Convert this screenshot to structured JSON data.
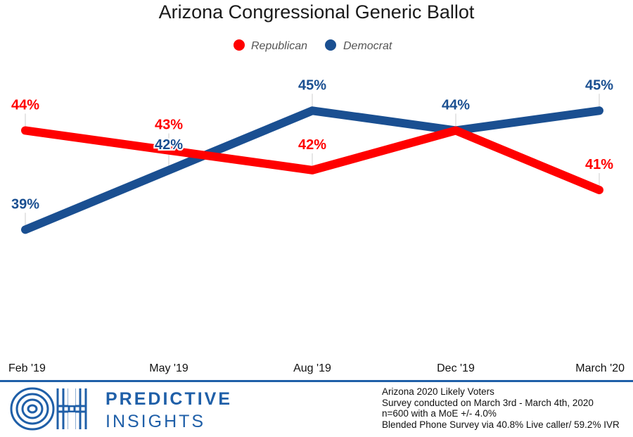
{
  "chart_data": {
    "type": "line",
    "title": "Arizona Congressional Generic Ballot",
    "categories": [
      "Feb '19",
      "May '19",
      "Aug '19",
      "Dec '19",
      "March '20"
    ],
    "series": [
      {
        "name": "Republican",
        "values": [
          44,
          43,
          42,
          44,
          41
        ],
        "labels": [
          "44%",
          "43%",
          "42%",
          "44%",
          "41%"
        ],
        "color": "#ff0000"
      },
      {
        "name": "Democrat",
        "values": [
          39,
          42,
          45,
          44,
          45
        ],
        "labels": [
          "39%",
          "42%",
          "45%",
          "44%",
          "45%"
        ],
        "color": "#1a4f91"
      }
    ],
    "ylim": [
      35.5,
      46.5
    ],
    "legend": "top-center",
    "grid": false
  },
  "footer": {
    "brand_line1": "PREDICTIVE",
    "brand_line2": "INSIGHTS",
    "logo_letters": "OH",
    "notes": [
      "Arizona 2020 Likely Voters",
      "Survey conducted on March 3rd - March 4th, 2020",
      "n=600 with a MoE +/- 4.0%",
      "Blended Phone Survey via 40.8% Live caller/ 59.2% IVR"
    ]
  }
}
